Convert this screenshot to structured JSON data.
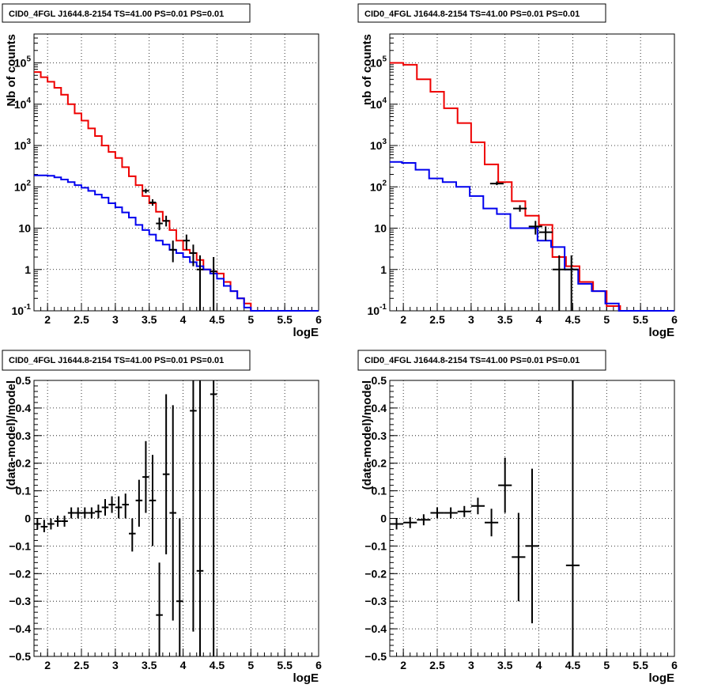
{
  "chart_data": [
    {
      "type": "histogram",
      "panel": "top-left",
      "title": "CID0_4FGL J1644.8-2154 TS=41.00 PS=0.01 PS=0.01",
      "xlabel": "logE",
      "ylabel": "Nb of counts",
      "xlim": [
        1.8,
        6.0
      ],
      "ylim": [
        0.1,
        500000
      ],
      "yscale": "log",
      "grid": true,
      "xticks": [
        "2",
        "2.5",
        "3",
        "3.5",
        "4",
        "4.5",
        "5",
        "5.5",
        "6"
      ],
      "yticks": [
        "10^-1",
        "1",
        "10",
        "10^2",
        "10^3",
        "10^4",
        "10^5"
      ],
      "series": [
        {
          "color": "#ee0000",
          "kind": "step",
          "x_edges": [
            1.8,
            1.9,
            2.0,
            2.1,
            2.2,
            2.3,
            2.4,
            2.5,
            2.6,
            2.7,
            2.8,
            2.9,
            3.0,
            3.1,
            3.2,
            3.3,
            3.4,
            3.5,
            3.6,
            3.7,
            3.8,
            3.9,
            4.0,
            4.1,
            4.2,
            4.3,
            4.4,
            4.5,
            4.6,
            4.7,
            4.8,
            4.9,
            5.0,
            5.1,
            5.2,
            5.3,
            5.4,
            5.5,
            5.6,
            5.7,
            5.8,
            5.9,
            6.0
          ],
          "values": [
            60000,
            45000,
            35000,
            25000,
            17000,
            10000,
            6000,
            4000,
            2600,
            1700,
            1000,
            700,
            500,
            300,
            180,
            110,
            60,
            40,
            25,
            15,
            9,
            5,
            3,
            2.5,
            1.7,
            1,
            0.9,
            0.8,
            0.5,
            0.3,
            0.2,
            0.15,
            0.1,
            0.1,
            0.1,
            0.1,
            0.1,
            0.1,
            0.1,
            0.1,
            0.1,
            0.1
          ]
        },
        {
          "color": "#0000ee",
          "kind": "step",
          "x_edges": [
            1.8,
            1.9,
            2.0,
            2.1,
            2.2,
            2.3,
            2.4,
            2.5,
            2.6,
            2.7,
            2.8,
            2.9,
            3.0,
            3.1,
            3.2,
            3.3,
            3.4,
            3.5,
            3.6,
            3.7,
            3.8,
            3.9,
            4.0,
            4.1,
            4.2,
            4.3,
            4.4,
            4.5,
            4.6,
            4.7,
            4.8,
            4.9,
            5.0,
            5.1,
            5.2,
            5.3,
            5.4,
            5.5,
            5.6,
            5.7,
            5.8,
            5.9,
            6.0
          ],
          "values": [
            190,
            190,
            185,
            170,
            150,
            130,
            110,
            95,
            80,
            65,
            55,
            40,
            32,
            24,
            18,
            12,
            9,
            7,
            5,
            4,
            3,
            2.5,
            2,
            1.5,
            1.2,
            1,
            0.8,
            0.6,
            0.4,
            0.3,
            0.2,
            0.12,
            0.1,
            0.1,
            0.1,
            0.1,
            0.1,
            0.1,
            0.1,
            0.1,
            0.1,
            0.1
          ]
        },
        {
          "color": "#000000",
          "kind": "errorbar",
          "points": [
            {
              "x": 3.45,
              "y": 80,
              "xerr": 0.05,
              "ylo": 70,
              "yhi": 90
            },
            {
              "x": 3.55,
              "y": 42,
              "xerr": 0.05,
              "ylo": 35,
              "yhi": 50
            },
            {
              "x": 3.65,
              "y": 13,
              "xerr": 0.05,
              "ylo": 9,
              "yhi": 18
            },
            {
              "x": 3.75,
              "y": 15,
              "xerr": 0.05,
              "ylo": 11,
              "yhi": 20
            },
            {
              "x": 3.85,
              "y": 3,
              "xerr": 0.05,
              "ylo": 1.5,
              "yhi": 5
            },
            {
              "x": 4.05,
              "y": 5,
              "xerr": 0.05,
              "ylo": 3,
              "yhi": 7
            },
            {
              "x": 4.15,
              "y": 2.5,
              "xerr": 0.05,
              "ylo": 1.2,
              "yhi": 4
            },
            {
              "x": 4.25,
              "y": 1,
              "xerr": 0.05,
              "ylo": 0.1,
              "yhi": 2.2
            },
            {
              "x": 4.45,
              "y": 0.9,
              "xerr": 0.05,
              "ylo": 0.1,
              "yhi": 2
            }
          ]
        }
      ]
    },
    {
      "type": "histogram",
      "panel": "top-right",
      "title": "CID0_4FGL J1644.8-2154 TS=41.00 PS=0.01 PS=0.01",
      "xlabel": "logE",
      "ylabel": "nb of counts",
      "xlim": [
        1.8,
        6.0
      ],
      "ylim": [
        0.1,
        500000
      ],
      "yscale": "log",
      "grid": true,
      "xticks": [
        "2",
        "2.5",
        "3",
        "3.5",
        "4",
        "4.5",
        "5",
        "5.5",
        "6"
      ],
      "yticks": [
        "10^-1",
        "1",
        "10",
        "10^2",
        "10^3",
        "10^4",
        "10^5"
      ],
      "series": [
        {
          "color": "#ee0000",
          "kind": "step",
          "x_edges": [
            1.8,
            2.0,
            2.2,
            2.4,
            2.6,
            2.8,
            3.0,
            3.2,
            3.4,
            3.6,
            3.8,
            4.0,
            4.2,
            4.4,
            4.6,
            4.8,
            5.0,
            5.2,
            5.4,
            5.6,
            5.8,
            6.0
          ],
          "values": [
            100000,
            90000,
            40000,
            20000,
            8000,
            3500,
            1200,
            350,
            130,
            45,
            20,
            12,
            2,
            1.2,
            0.5,
            0.3,
            0.13,
            0.1,
            0.1,
            0.1,
            0.1
          ],
          "extent_x_edges_override": [
            1.8,
            1.98,
            2.18,
            2.38,
            2.58,
            2.78,
            2.98,
            3.18,
            3.38,
            3.58,
            3.78,
            3.98,
            4.18,
            4.38,
            4.58,
            4.78,
            4.98,
            5.18,
            5.38,
            5.58,
            5.78,
            6.0
          ]
        },
        {
          "color": "#0000ee",
          "kind": "step",
          "x_edges": [
            1.8,
            1.98,
            2.18,
            2.38,
            2.58,
            2.78,
            2.98,
            3.18,
            3.38,
            3.58,
            3.78,
            3.98,
            4.18,
            4.38,
            4.58,
            4.78,
            4.98,
            5.18,
            5.38,
            5.58,
            5.78,
            6.0
          ],
          "values": [
            400,
            380,
            260,
            160,
            130,
            100,
            60,
            30,
            22,
            10,
            10,
            5,
            3.5,
            1,
            0.45,
            0.3,
            0.15,
            0.1,
            0.1,
            0.1,
            0.1
          ]
        },
        {
          "color": "#000000",
          "kind": "errorbar",
          "points": [
            {
              "x": 3.38,
              "y": 120,
              "xerr": 0.1,
              "ylo": 110,
              "yhi": 135
            },
            {
              "x": 3.72,
              "y": 30,
              "xerr": 0.1,
              "ylo": 25,
              "yhi": 36
            },
            {
              "x": 3.95,
              "y": 11,
              "xerr": 0.1,
              "ylo": 7,
              "yhi": 15
            },
            {
              "x": 4.1,
              "y": 8,
              "xerr": 0.1,
              "ylo": 5,
              "yhi": 11
            },
            {
              "x": 4.3,
              "y": 1,
              "xerr": 0.1,
              "ylo": 0.1,
              "yhi": 2.2
            },
            {
              "x": 4.48,
              "y": 1,
              "xerr": 0.1,
              "ylo": 0.1,
              "yhi": 2.2
            }
          ]
        }
      ]
    },
    {
      "type": "scatter",
      "panel": "bottom-left",
      "title": "CID0_4FGL J1644.8-2154 TS=41.00 PS=0.01 PS=0.01",
      "xlabel": "logE",
      "ylabel": "(data-model)/model",
      "xlim": [
        1.8,
        6.0
      ],
      "ylim": [
        -0.5,
        0.5
      ],
      "grid": true,
      "xticks": [
        "2",
        "2.5",
        "3",
        "3.5",
        "4",
        "4.5",
        "5",
        "5.5",
        "6"
      ],
      "yticks": [
        "-0.5",
        "-0.4",
        "-0.3",
        "-0.2",
        "-0.1",
        "0",
        "0.1",
        "0.2",
        "0.3",
        "0.4",
        "0.5"
      ],
      "series": [
        {
          "color": "#000000",
          "kind": "errorbar",
          "points": [
            {
              "x": 1.85,
              "y": -0.02,
              "xerr": 0.05,
              "ylo": -0.04,
              "yhi": 0.0
            },
            {
              "x": 1.95,
              "y": -0.03,
              "xerr": 0.05,
              "ylo": -0.05,
              "yhi": -0.005
            },
            {
              "x": 2.05,
              "y": -0.02,
              "xerr": 0.05,
              "ylo": -0.04,
              "yhi": 0.0
            },
            {
              "x": 2.15,
              "y": -0.01,
              "xerr": 0.05,
              "ylo": -0.03,
              "yhi": 0.01
            },
            {
              "x": 2.25,
              "y": -0.01,
              "xerr": 0.05,
              "ylo": -0.03,
              "yhi": 0.01
            },
            {
              "x": 2.35,
              "y": 0.02,
              "xerr": 0.05,
              "ylo": 0.0,
              "yhi": 0.04
            },
            {
              "x": 2.45,
              "y": 0.02,
              "xerr": 0.05,
              "ylo": 0.0,
              "yhi": 0.04
            },
            {
              "x": 2.55,
              "y": 0.02,
              "xerr": 0.05,
              "ylo": 0.0,
              "yhi": 0.04
            },
            {
              "x": 2.65,
              "y": 0.02,
              "xerr": 0.05,
              "ylo": 0.0,
              "yhi": 0.04
            },
            {
              "x": 2.75,
              "y": 0.025,
              "xerr": 0.05,
              "ylo": 0.0,
              "yhi": 0.05
            },
            {
              "x": 2.85,
              "y": 0.04,
              "xerr": 0.05,
              "ylo": 0.01,
              "yhi": 0.07
            },
            {
              "x": 2.95,
              "y": 0.05,
              "xerr": 0.05,
              "ylo": 0.02,
              "yhi": 0.08
            },
            {
              "x": 3.05,
              "y": 0.04,
              "xerr": 0.05,
              "ylo": 0.0,
              "yhi": 0.08
            },
            {
              "x": 3.15,
              "y": 0.05,
              "xerr": 0.05,
              "ylo": 0.0,
              "yhi": 0.09
            },
            {
              "x": 3.25,
              "y": -0.055,
              "xerr": 0.05,
              "ylo": -0.12,
              "yhi": 0.0
            },
            {
              "x": 3.35,
              "y": 0.065,
              "xerr": 0.05,
              "ylo": -0.03,
              "yhi": 0.14
            },
            {
              "x": 3.45,
              "y": 0.15,
              "xerr": 0.05,
              "ylo": 0.02,
              "yhi": 0.28
            },
            {
              "x": 3.55,
              "y": 0.065,
              "xerr": 0.05,
              "ylo": -0.1,
              "yhi": 0.23
            },
            {
              "x": 3.65,
              "y": -0.35,
              "xerr": 0.05,
              "ylo": -0.5,
              "yhi": -0.16
            },
            {
              "x": 3.75,
              "y": 0.16,
              "xerr": 0.05,
              "ylo": -0.13,
              "yhi": 0.45
            },
            {
              "x": 3.85,
              "y": 0.02,
              "xerr": 0.05,
              "ylo": -0.37,
              "yhi": 0.41
            },
            {
              "x": 3.95,
              "y": -0.3,
              "xerr": 0.05,
              "ylo": -0.5,
              "yhi": 0.0
            },
            {
              "x": 4.15,
              "y": 0.39,
              "xerr": 0.05,
              "ylo": -0.41,
              "yhi": 0.5
            },
            {
              "x": 4.25,
              "y": -0.19,
              "xerr": 0.05,
              "ylo": -0.5,
              "yhi": 0.5
            },
            {
              "x": 4.45,
              "y": 0.45,
              "xerr": 0.05,
              "ylo": -0.5,
              "yhi": 0.5
            }
          ]
        }
      ]
    },
    {
      "type": "scatter",
      "panel": "bottom-right",
      "title": "CID0_4FGL J1644.8-2154 TS=41.00 PS=0.01 PS=0.01",
      "xlabel": "logE",
      "ylabel": "(data-model)/model",
      "xlim": [
        1.8,
        6.0
      ],
      "ylim": [
        -0.5,
        0.5
      ],
      "grid": true,
      "xticks": [
        "2",
        "2.5",
        "3",
        "3.5",
        "4",
        "4.5",
        "5",
        "5.5",
        "6"
      ],
      "yticks": [
        "-0.5",
        "-0.4",
        "-0.3",
        "-0.2",
        "-0.1",
        "0",
        "0.1",
        "0.2",
        "0.3",
        "0.4",
        "0.5"
      ],
      "series": [
        {
          "color": "#000000",
          "kind": "errorbar",
          "points": [
            {
              "x": 1.9,
              "y": -0.02,
              "xerr": 0.1,
              "ylo": -0.04,
              "yhi": 0.0
            },
            {
              "x": 2.1,
              "y": -0.015,
              "xerr": 0.1,
              "ylo": -0.035,
              "yhi": 0.005
            },
            {
              "x": 2.3,
              "y": -0.005,
              "xerr": 0.1,
              "ylo": -0.025,
              "yhi": 0.015
            },
            {
              "x": 2.5,
              "y": 0.02,
              "xerr": 0.1,
              "ylo": 0.0,
              "yhi": 0.04
            },
            {
              "x": 2.7,
              "y": 0.02,
              "xerr": 0.1,
              "ylo": 0.0,
              "yhi": 0.04
            },
            {
              "x": 2.9,
              "y": 0.025,
              "xerr": 0.1,
              "ylo": 0.005,
              "yhi": 0.045
            },
            {
              "x": 3.1,
              "y": 0.045,
              "xerr": 0.1,
              "ylo": 0.015,
              "yhi": 0.075
            },
            {
              "x": 3.3,
              "y": -0.015,
              "xerr": 0.1,
              "ylo": -0.065,
              "yhi": 0.035
            },
            {
              "x": 3.5,
              "y": 0.12,
              "xerr": 0.1,
              "ylo": 0.02,
              "yhi": 0.22
            },
            {
              "x": 3.7,
              "y": -0.14,
              "xerr": 0.1,
              "ylo": -0.3,
              "yhi": 0.02
            },
            {
              "x": 3.9,
              "y": -0.1,
              "xerr": 0.1,
              "ylo": -0.38,
              "yhi": 0.18
            },
            {
              "x": 4.5,
              "y": -0.17,
              "xerr": 0.1,
              "ylo": -0.5,
              "yhi": 0.5
            }
          ]
        }
      ]
    }
  ]
}
